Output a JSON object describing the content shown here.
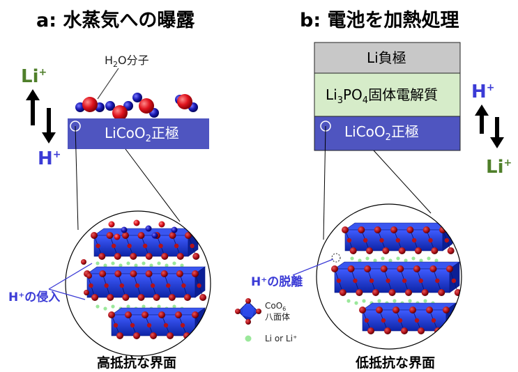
{
  "panel_a": {
    "title": "a: 水蒸気への曝露",
    "molecule_label": {
      "prefix": "H",
      "sub": "2",
      "suffix": "O分子"
    },
    "electrode_label": {
      "prefix": "LiCoO",
      "sub": "2",
      "suffix": "正極"
    },
    "ion_top": {
      "base": "Li",
      "sup": "+"
    },
    "ion_bottom": {
      "base": "H",
      "sup": "+"
    },
    "note": "H⁺の侵入",
    "caption": "高抵抗な界面"
  },
  "panel_b": {
    "title": "b: 電池を加熱処理",
    "anode_label": "Li負極",
    "electrolyte_label": {
      "prefix": "Li",
      "sub1": "3",
      "mid": "PO",
      "sub2": "4",
      "suffix": "固体電解質"
    },
    "electrode_label": {
      "prefix": "LiCoO",
      "sub": "2",
      "suffix": "正極"
    },
    "ion_top": {
      "base": "H",
      "sup": "+"
    },
    "ion_bottom": {
      "base": "Li",
      "sup": "+"
    },
    "note": "H⁺の脱離",
    "caption": "低抵抗な界面"
  },
  "legend": {
    "octahedron_label": {
      "prefix": "CoO",
      "sub": "6",
      "line2": "八面体"
    },
    "li_label": "Li or Li⁺"
  },
  "colors": {
    "electrode": "#4f55c0",
    "electrolyte": "#d6ecc9",
    "anode": "#c8c8c8",
    "li_ion": "#4f7f2a",
    "h_ion": "#3b3bd6",
    "oxygen": "#e0141e",
    "hydrogen": "#1a1ab4",
    "octahedron": "#1535d4",
    "o_atom": "#b3121a",
    "li_atom": "#9be89b"
  }
}
